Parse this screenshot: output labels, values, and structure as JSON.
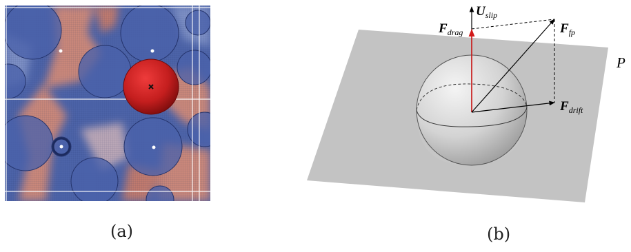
{
  "captions": {
    "a": "(a)",
    "b": "(b)"
  },
  "panel_b": {
    "labels": {
      "u_slip": {
        "main": "U",
        "sub": "slip"
      },
      "f_drag": {
        "main": "F",
        "sub": "drag"
      },
      "f_fp": {
        "main": "F",
        "sub": "fp"
      },
      "f_drift": {
        "main": "F",
        "sub": "drift"
      },
      "plane": "P"
    }
  },
  "colors": {
    "background": "#ffffff",
    "field_blue": "#4c63a8",
    "field_red": "#c9877a",
    "highlight_particle": "#c41e1e",
    "drag_vector": "#d21a1a",
    "plane": "#c3c3c3"
  }
}
